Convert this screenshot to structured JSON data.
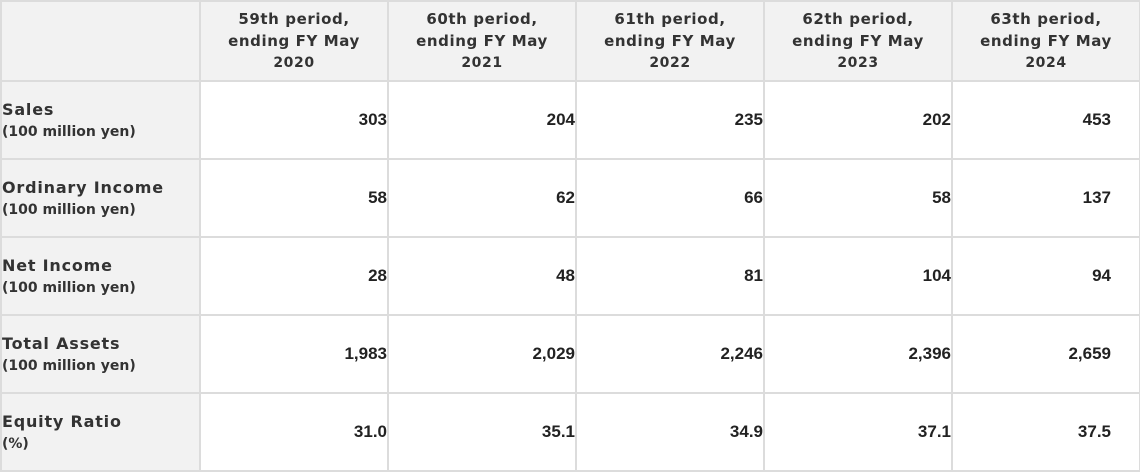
{
  "table": {
    "columns": [
      {
        "line1": "59th period,",
        "line2": "ending FY May",
        "year": "2020"
      },
      {
        "line1": "60th period,",
        "line2": "ending FY May",
        "year": "2021"
      },
      {
        "line1": "61th period,",
        "line2": "ending FY May",
        "year": "2022"
      },
      {
        "line1": "62th period,",
        "line2": "ending FY May",
        "year": "2023"
      },
      {
        "line1": "63th period,",
        "line2": "ending FY May",
        "year": "2024"
      }
    ],
    "rows": [
      {
        "label": "Sales",
        "unit": "(100 million yen)",
        "values": [
          "303",
          "204",
          "235",
          "202",
          "453"
        ]
      },
      {
        "label": "Ordinary Income",
        "unit": "(100 million yen)",
        "values": [
          "58",
          "62",
          "66",
          "58",
          "137"
        ]
      },
      {
        "label": "Net Income",
        "unit": "(100 million yen)",
        "values": [
          "28",
          "48",
          "81",
          "104",
          "94"
        ]
      },
      {
        "label": "Total Assets",
        "unit": "(100 million yen)",
        "values": [
          "1,983",
          "2,029",
          "2,246",
          "2,396",
          "2,659"
        ]
      },
      {
        "label": "Equity Ratio",
        "unit": "(%)",
        "values": [
          "31.0",
          "35.1",
          "34.9",
          "37.1",
          "37.5"
        ]
      }
    ]
  }
}
